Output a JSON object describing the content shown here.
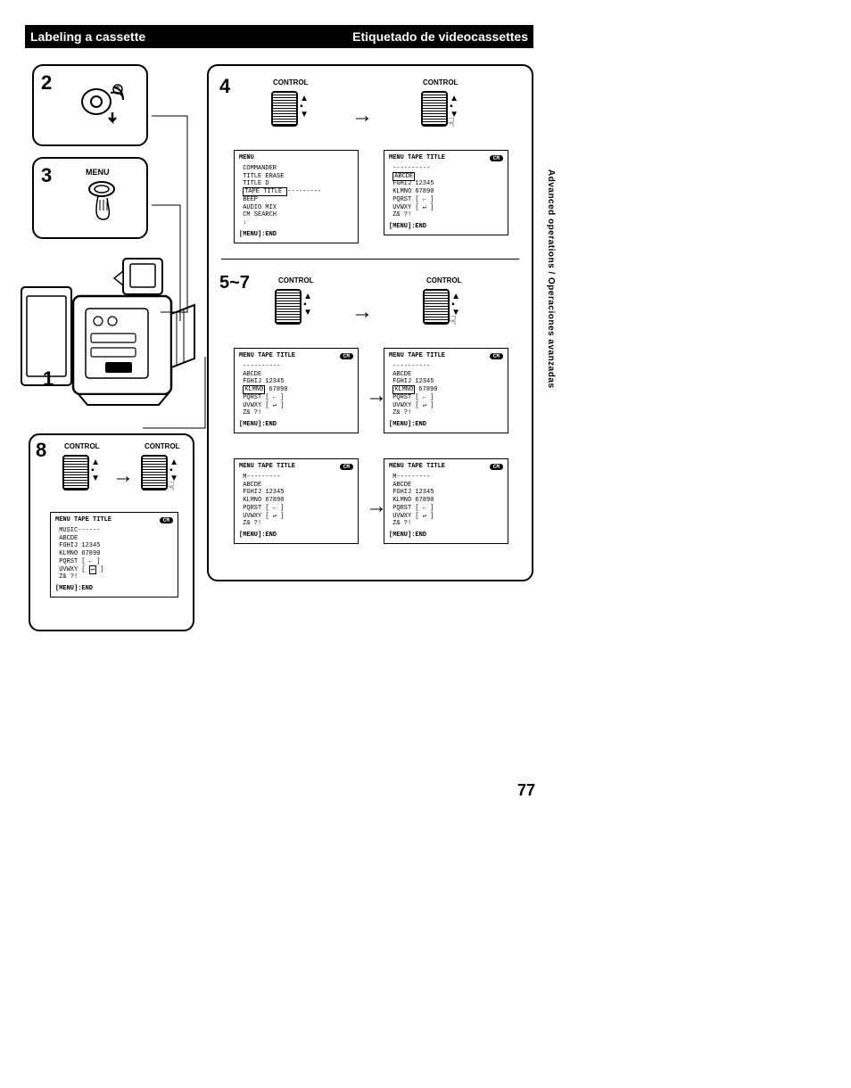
{
  "header": {
    "left": "Labeling a cassette",
    "right": "Etiquetado de videocassettes"
  },
  "side_tab": "Advanced operations / Operaciones avanzadas",
  "page_number": "77",
  "labels": {
    "control": "CONTROL",
    "menu": "MENU",
    "arrow": "→"
  },
  "steps": {
    "s1": "1",
    "s2": "2",
    "s3": "3",
    "s4": "4",
    "s5_7": "5~7",
    "s8": "8"
  },
  "screens": {
    "menu_list": {
      "title": "MENU",
      "lines": [
        "COMMANDER",
        "TITLE ERASE",
        "TITLE D",
        "TAPE TITLE ▷",
        "BEEP",
        "AUDIO MIX",
        "CM SEARCH",
        "↓"
      ],
      "footer": "[MENU]:END",
      "boxed_line_idx": 3
    },
    "tt_abcde_boxed": {
      "title": "MENU TAPE TITLE",
      "badge": "CM",
      "dash": "----------",
      "lines": [
        "ABCDE",
        "FGHIJ 12345",
        "KLMNO 67890",
        "PQRST [ ← ]",
        "UVWXY [ ↵ ]",
        "Z&  ?!"
      ],
      "footer": "[MENU]:END",
      "boxed_token": "ABCDE"
    },
    "tt_klmno_boxed": {
      "title": "MENU TAPE TITLE",
      "badge": "CM",
      "dash": "----------",
      "lines": [
        "ABCDE",
        "FGHIJ 12345",
        "KLMNO 67890",
        "PQRST [ ← ]",
        "UVWXY [ ↵ ]",
        "Z&  ?!"
      ],
      "footer": "[MENU]:END",
      "boxed_token": "KLMNO"
    },
    "tt_m_under": {
      "title": "MENU TAPE TITLE",
      "badge": "CM",
      "dash": "M---------",
      "lines": [
        "ABCDE",
        "FGHIJ 12345",
        "KLMNO 67890",
        "PQRST [ ← ]",
        "UVWXY [ ↵ ]",
        "Z&  ?!"
      ],
      "footer": "[MENU]:END",
      "under_token": "M"
    },
    "tt_music": {
      "title": "MENU TAPE TITLE",
      "badge": "CM",
      "dash": "MUSIC------",
      "lines": [
        "ABCDE",
        "FGHIJ 12345",
        "KLMNO 67890",
        "PQRST [ ← ]",
        "UVWXY [  ↵  ]",
        "Z&  ?!"
      ],
      "footer": "[MENU]:END",
      "boxed_token": "↵"
    }
  }
}
